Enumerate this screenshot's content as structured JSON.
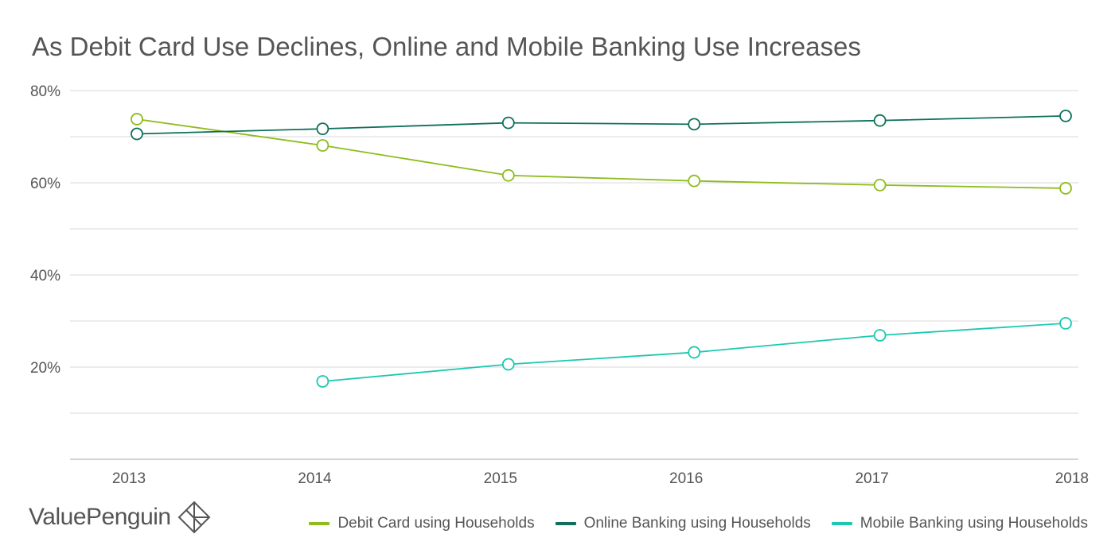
{
  "chart_data": {
    "type": "line",
    "title": "As Debit Card Use Declines, Online and Mobile Banking Use Increases",
    "x": [
      "2013",
      "2014",
      "2015",
      "2016",
      "2017",
      "2018"
    ],
    "ylim": [
      0,
      80
    ],
    "y_ticks": [
      {
        "value": 0,
        "label": ""
      },
      {
        "value": 10,
        "label": ""
      },
      {
        "value": 20,
        "label": "20%"
      },
      {
        "value": 30,
        "label": ""
      },
      {
        "value": 40,
        "label": "40%"
      },
      {
        "value": 50,
        "label": ""
      },
      {
        "value": 60,
        "label": "60%"
      },
      {
        "value": 70,
        "label": ""
      },
      {
        "value": 80,
        "label": "80%"
      }
    ],
    "grid": true,
    "legend_position": "bottom-right",
    "series": [
      {
        "name": "Debit Card using Households",
        "color": "#8cbd1b",
        "values": [
          73.8,
          68.1,
          61.6,
          60.4,
          59.5,
          58.8
        ]
      },
      {
        "name": "Online Banking using Households",
        "color": "#0e705c",
        "values": [
          70.6,
          71.7,
          73.0,
          72.7,
          73.5,
          74.5
        ]
      },
      {
        "name": "Mobile Banking using Households",
        "color": "#1bc9b0",
        "values": [
          null,
          16.9,
          20.6,
          23.2,
          26.9,
          29.5
        ]
      }
    ]
  },
  "branding": {
    "logo_text": "ValuePenguin",
    "logo_icon": "valuepenguin-diamond-logo"
  },
  "colors": {
    "text": "#555555",
    "grid": "#d9d9d9",
    "axis": "#aaaaaa"
  }
}
